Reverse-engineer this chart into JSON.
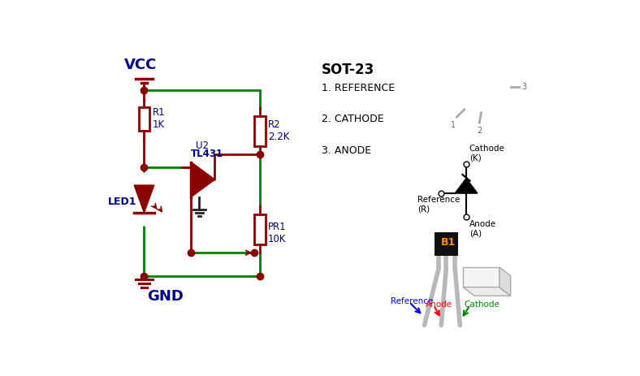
{
  "bg_color": "#ffffff",
  "green": "#008000",
  "dark_red": "#8B0000",
  "blue": "#00008B",
  "black": "#000000",
  "gray": "#888888",
  "light_gray": "#d8d8d8",
  "ref_color": "#0000FF",
  "anode_color": "#FF0000",
  "cathode_color": "#008800",
  "orange": "#FF8C00",
  "vcc_label": "VCC",
  "gnd_label": "GND",
  "r1_label": "R1\n1K",
  "r2_label": "R2\n2.2K",
  "pr1_label": "PR1\n10K",
  "led_label": "LED1",
  "u2_line1": "U2",
  "u2_line2": "TL431",
  "sot23_title": "SOT-23",
  "pin1_label": "1. REFERENCE",
  "pin2_label": "2. CATHODE",
  "pin3_label": "3. ANODE",
  "cathode_k": "Cathode\n(K)",
  "reference_r": "Reference\n(R)",
  "anode_a": "Anode\n(A)"
}
